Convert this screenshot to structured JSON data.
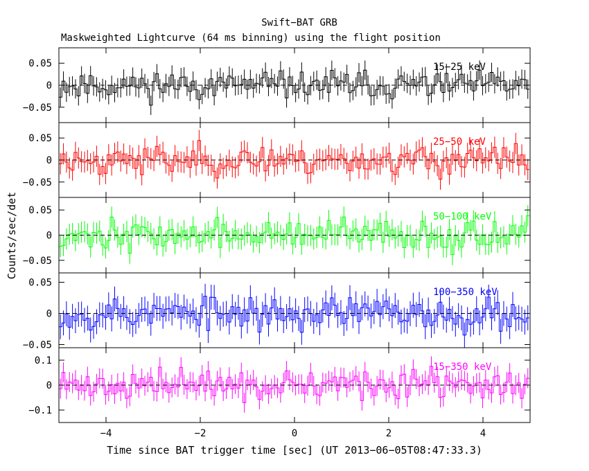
{
  "header": {
    "title": "Swift−BAT GRB",
    "subtitle": "Maskweighted Lightcurve (64 ms binning) using the flight position"
  },
  "xlabel": "Time since BAT trigger time [sec] (UT 2013−06−05T08:47:33.3)",
  "ylabel": "Counts/sec/det",
  "chart_data": {
    "type": "line",
    "style": "histogram steps with vertical error bars, dashed zero line",
    "title": "Swift−BAT GRB",
    "subtitle": "Maskweighted Lightcurve (64 ms binning) using the flight position",
    "xlabel": "Time since BAT trigger time [sec] (UT 2013−06−05T08:47:33.3)",
    "ylabel": "Counts/sec/det",
    "xlim": [
      -5,
      5
    ],
    "x_ticks": [
      -4,
      -2,
      0,
      2,
      4
    ],
    "x_tick_labels": [
      "−4",
      "−2",
      "0",
      "2",
      "4"
    ],
    "bin_width_s": 0.064,
    "legend": "none",
    "grid": false,
    "panels": [
      {
        "name": "15−25 keV",
        "color": "#000000",
        "ylim": [
          -0.085,
          0.085
        ],
        "yticks": [
          -0.05,
          0,
          0.05
        ],
        "ytick_labels": [
          "−0.05",
          "0",
          "0.05"
        ],
        "error": 0.022,
        "seed": 11,
        "noise_sd": 0.021,
        "values": []
      },
      {
        "name": "25−50 keV",
        "color": "#ff0000",
        "ylim": [
          -0.085,
          0.085
        ],
        "yticks": [
          -0.05,
          0,
          0.05
        ],
        "ytick_labels": [
          "−0.05",
          "0",
          "0.05"
        ],
        "error": 0.024,
        "seed": 23,
        "noise_sd": 0.023,
        "values": []
      },
      {
        "name": "50−100 keV",
        "color": "#00ff00",
        "ylim": [
          -0.075,
          0.075
        ],
        "yticks": [
          -0.05,
          0,
          0.05
        ],
        "ytick_labels": [
          "−0.05",
          "0",
          "0.05"
        ],
        "error": 0.021,
        "seed": 37,
        "noise_sd": 0.02,
        "values": []
      },
      {
        "name": "100−350 keV",
        "color": "#0000ff",
        "ylim": [
          -0.055,
          0.065
        ],
        "yticks": [
          -0.05,
          0,
          0.05
        ],
        "ytick_labels": [
          "−0.05",
          "0",
          "0.05"
        ],
        "error": 0.02,
        "seed": 53,
        "noise_sd": 0.019,
        "values": []
      },
      {
        "name": "15−350 keV",
        "color": "#ff00ff",
        "ylim": [
          -0.15,
          0.15
        ],
        "yticks": [
          -0.1,
          0,
          0.1
        ],
        "ytick_labels": [
          "−0.1",
          "0",
          "0.1"
        ],
        "error": 0.04,
        "seed": 71,
        "noise_sd": 0.04,
        "values": []
      }
    ]
  }
}
